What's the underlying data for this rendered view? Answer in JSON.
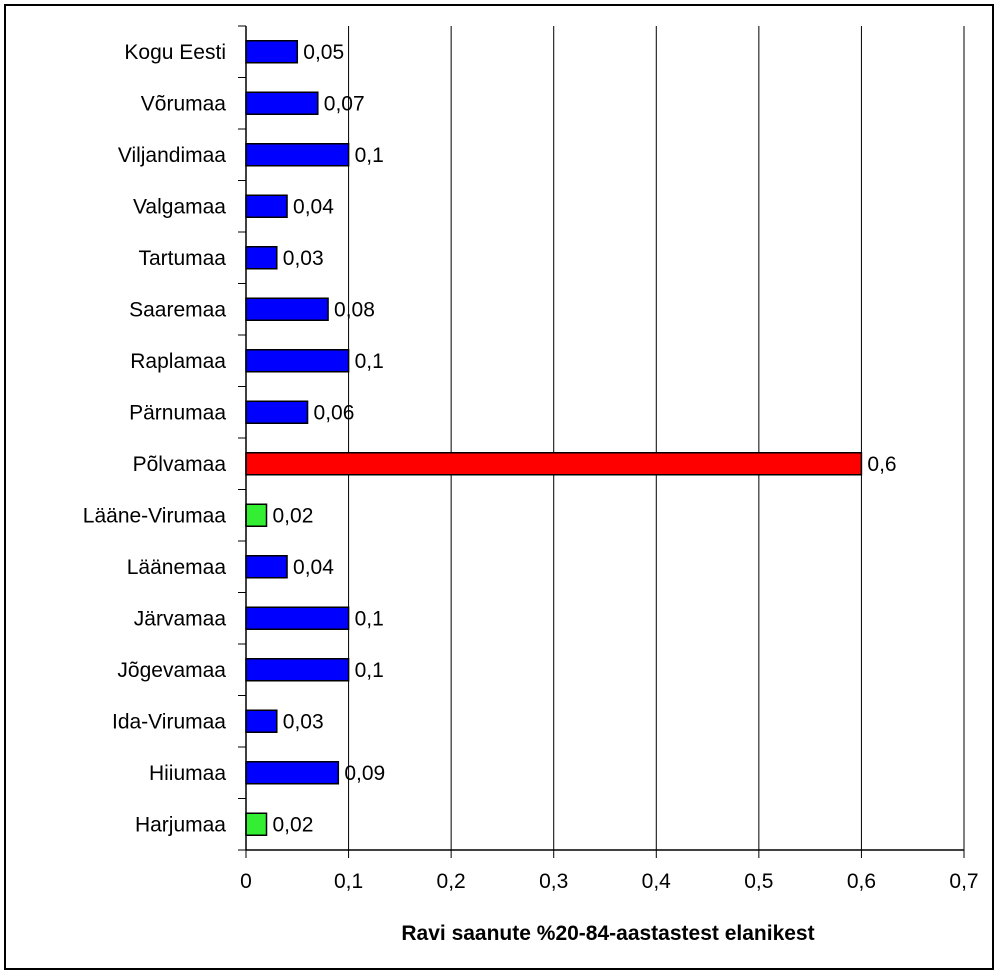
{
  "chart_data": {
    "type": "bar",
    "orientation": "horizontal",
    "categories": [
      "Kogu Eesti",
      "Võrumaa",
      "Viljandimaa",
      "Valgamaa",
      "Tartumaa",
      "Saaremaa",
      "Raplamaa",
      "Pärnumaa",
      "Põlvamaa",
      "Lääne-Virumaa",
      "Läänemaa",
      "Järvamaa",
      "Jõgevamaa",
      "Ida-Virumaa",
      "Hiiumaa",
      "Harjumaa"
    ],
    "values": [
      0.05,
      0.07,
      0.1,
      0.04,
      0.03,
      0.08,
      0.1,
      0.06,
      0.6,
      0.02,
      0.04,
      0.1,
      0.1,
      0.03,
      0.09,
      0.02
    ],
    "value_labels": [
      "0,05",
      "0,07",
      "0,1",
      "0,04",
      "0,03",
      "0,08",
      "0,1",
      "0,06",
      "0,6",
      "0,02",
      "0,04",
      "0,1",
      "0,1",
      "0,03",
      "0,09",
      "0,02"
    ],
    "bar_colors": [
      "#0000ff",
      "#0000ff",
      "#0000ff",
      "#0000ff",
      "#0000ff",
      "#0000ff",
      "#0000ff",
      "#0000ff",
      "#ff0000",
      "#33ee33",
      "#0000ff",
      "#0000ff",
      "#0000ff",
      "#0000ff",
      "#0000ff",
      "#33ee33"
    ],
    "xlim": [
      0,
      0.7
    ],
    "xticks": [
      0,
      0.1,
      0.2,
      0.3,
      0.4,
      0.5,
      0.6,
      0.7
    ],
    "xtick_labels": [
      "0",
      "0,1",
      "0,2",
      "0,3",
      "0,4",
      "0,5",
      "0,6",
      "0,7"
    ],
    "xlabel": "Ravi saanute %20-84-aastastest elanikest",
    "ylabel": "",
    "title": "",
    "grid": "vertical",
    "legend": "none"
  }
}
